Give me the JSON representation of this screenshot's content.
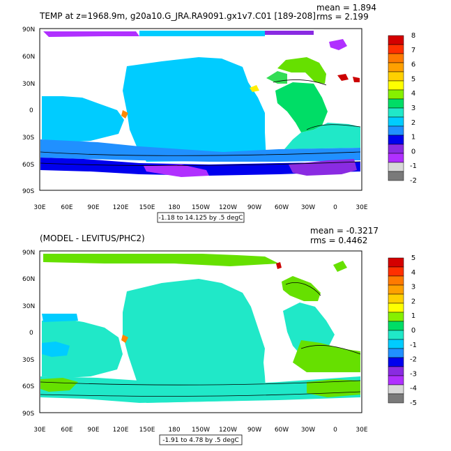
{
  "panels": [
    {
      "title": "TEMP at z=1968.9m, g20a10.G_JRA.RA9091.gx1v7.C01 [189-208]",
      "mean": "mean = 1.894",
      "rms": "rms = 2.199",
      "contour_info": "-1.18 to 14.125 by .5 degC",
      "colorbar_labels": [
        "8",
        "7",
        "6",
        "5",
        "4",
        "3",
        "2",
        "1",
        "0",
        "-1",
        "-2"
      ],
      "colorbar_colors": [
        "#d40000",
        "#ff3000",
        "#ff7a00",
        "#ffa000",
        "#ffd000",
        "#ffff00",
        "#86f000",
        "#00dd66",
        "#20e8c8",
        "#00ccff",
        "#2090ff",
        "#0000ee",
        "#8a2be2",
        "#b030ff",
        "#d8d8d8",
        "#7a7a7a"
      ]
    },
    {
      "title": "(MODEL - LEVITUS/PHC2)",
      "mean": "mean = -0.3217",
      "rms": "rms = 0.4462",
      "contour_info": "-1.91 to 4.78 by .5 degC",
      "colorbar_labels": [
        "5",
        "4",
        "3",
        "2",
        "1",
        "0",
        "-1",
        "-2",
        "-3",
        "-4",
        "-5"
      ],
      "colorbar_colors": [
        "#d40000",
        "#ff3000",
        "#ff7a00",
        "#ffa000",
        "#ffd000",
        "#ffff00",
        "#86f000",
        "#00dd66",
        "#20e8c8",
        "#00ccff",
        "#2090ff",
        "#0000ee",
        "#8a2be2",
        "#b030ff",
        "#d8d8d8",
        "#7a7a7a"
      ]
    }
  ],
  "lat_labels": [
    "90N",
    "60N",
    "30N",
    "0",
    "30S",
    "60S",
    "90S"
  ],
  "lon_labels": [
    "30E",
    "60E",
    "90E",
    "120E",
    "150E",
    "180",
    "150W",
    "120W",
    "90W",
    "60W",
    "30W",
    "0",
    "30E"
  ]
}
